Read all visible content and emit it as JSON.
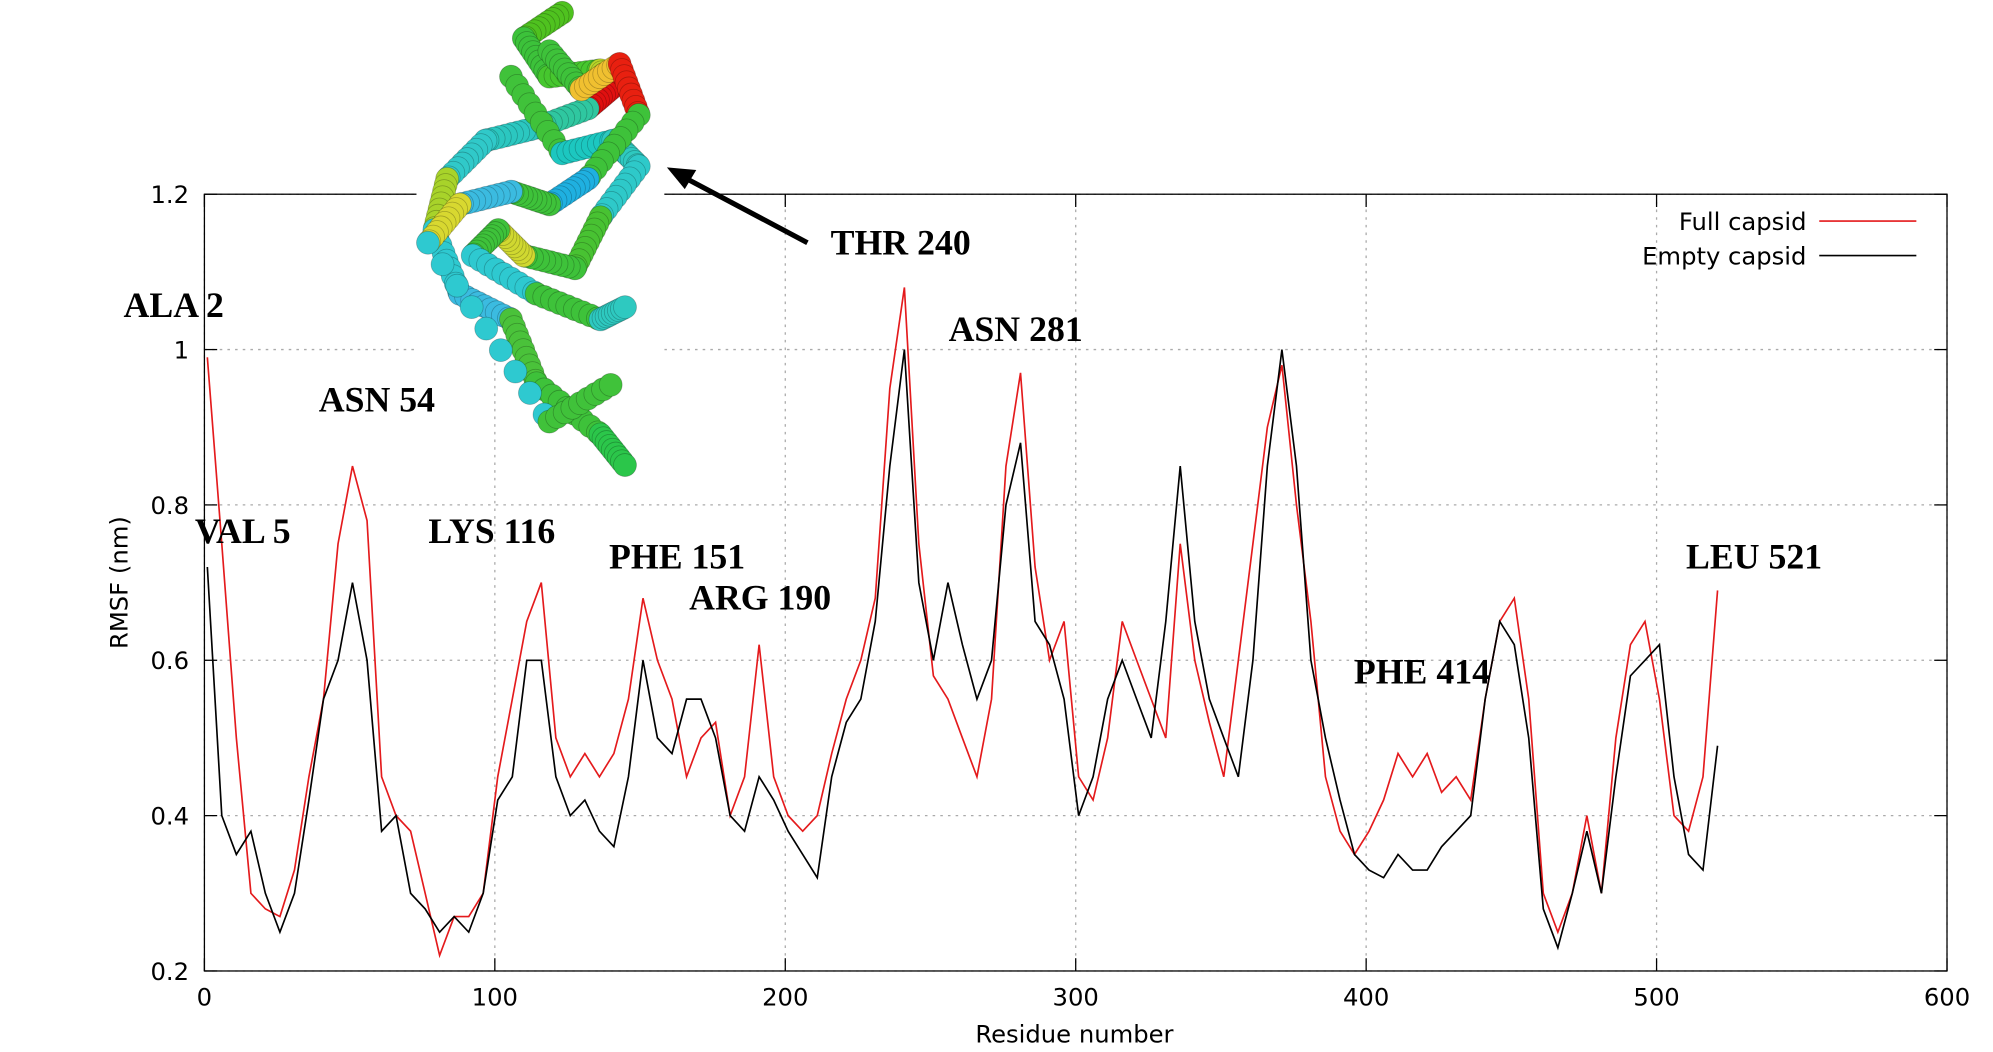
{
  "chart_data": {
    "type": "line",
    "xlabel": "Residue number",
    "ylabel": "RMSF (nm)",
    "x": [
      1,
      6,
      11,
      16,
      21,
      26,
      31,
      36,
      41,
      46,
      51,
      56,
      61,
      66,
      71,
      76,
      81,
      86,
      91,
      96,
      101,
      106,
      111,
      116,
      121,
      126,
      131,
      136,
      141,
      146,
      151,
      156,
      161,
      166,
      171,
      176,
      181,
      186,
      191,
      196,
      201,
      206,
      211,
      216,
      221,
      226,
      231,
      236,
      241,
      246,
      251,
      256,
      261,
      266,
      271,
      276,
      281,
      286,
      291,
      296,
      301,
      306,
      311,
      316,
      321,
      326,
      331,
      336,
      341,
      346,
      351,
      356,
      361,
      366,
      371,
      376,
      381,
      386,
      391,
      396,
      401,
      406,
      411,
      416,
      421,
      426,
      431,
      436,
      441,
      446,
      451,
      456,
      461,
      466,
      471,
      476,
      481,
      486,
      491,
      496,
      501,
      506,
      511,
      516,
      521
    ],
    "series": [
      {
        "name": "Full capsid",
        "color": "#e41a1c",
        "values": [
          0.99,
          0.75,
          0.5,
          0.3,
          0.28,
          0.27,
          0.33,
          0.45,
          0.55,
          0.75,
          0.85,
          0.78,
          0.45,
          0.4,
          0.38,
          0.3,
          0.22,
          0.27,
          0.27,
          0.3,
          0.45,
          0.55,
          0.65,
          0.7,
          0.5,
          0.45,
          0.48,
          0.45,
          0.48,
          0.55,
          0.68,
          0.6,
          0.55,
          0.45,
          0.5,
          0.52,
          0.4,
          0.45,
          0.62,
          0.45,
          0.4,
          0.38,
          0.4,
          0.48,
          0.55,
          0.6,
          0.68,
          0.95,
          1.08,
          0.75,
          0.58,
          0.55,
          0.5,
          0.45,
          0.55,
          0.85,
          0.97,
          0.72,
          0.6,
          0.65,
          0.45,
          0.42,
          0.5,
          0.65,
          0.6,
          0.55,
          0.5,
          0.75,
          0.6,
          0.52,
          0.45,
          0.6,
          0.75,
          0.9,
          0.98,
          0.8,
          0.65,
          0.45,
          0.38,
          0.35,
          0.38,
          0.42,
          0.48,
          0.45,
          0.48,
          0.43,
          0.45,
          0.42,
          0.55,
          0.65,
          0.68,
          0.55,
          0.3,
          0.25,
          0.3,
          0.4,
          0.3,
          0.5,
          0.62,
          0.65,
          0.55,
          0.4,
          0.38,
          0.45,
          0.69
        ]
      },
      {
        "name": "Empty capsid",
        "color": "#000000",
        "values": [
          0.72,
          0.4,
          0.35,
          0.38,
          0.3,
          0.25,
          0.3,
          0.42,
          0.55,
          0.6,
          0.7,
          0.6,
          0.38,
          0.4,
          0.3,
          0.28,
          0.25,
          0.27,
          0.25,
          0.3,
          0.42,
          0.45,
          0.6,
          0.6,
          0.45,
          0.4,
          0.42,
          0.38,
          0.36,
          0.45,
          0.6,
          0.5,
          0.48,
          0.55,
          0.55,
          0.5,
          0.4,
          0.38,
          0.45,
          0.42,
          0.38,
          0.35,
          0.32,
          0.45,
          0.52,
          0.55,
          0.65,
          0.85,
          1.0,
          0.7,
          0.6,
          0.7,
          0.62,
          0.55,
          0.6,
          0.8,
          0.88,
          0.65,
          0.62,
          0.55,
          0.4,
          0.45,
          0.55,
          0.6,
          0.55,
          0.5,
          0.65,
          0.85,
          0.65,
          0.55,
          0.5,
          0.45,
          0.6,
          0.85,
          1.0,
          0.85,
          0.6,
          0.5,
          0.42,
          0.35,
          0.33,
          0.32,
          0.35,
          0.33,
          0.33,
          0.36,
          0.38,
          0.4,
          0.55,
          0.65,
          0.62,
          0.5,
          0.28,
          0.23,
          0.3,
          0.38,
          0.3,
          0.45,
          0.58,
          0.6,
          0.62,
          0.45,
          0.35,
          0.33,
          0.49
        ]
      }
    ],
    "xlim": [
      0,
      600
    ],
    "xticks": [
      0,
      100,
      200,
      300,
      400,
      500,
      600
    ],
    "ylim": [
      0.2,
      1.2
    ],
    "yticks": [
      0.2,
      0.4,
      0.6,
      0.8,
      1,
      1.2
    ],
    "grid": true,
    "legend": "upper right",
    "annotations": [
      "ALA 2",
      "VAL 5",
      "ASN 54",
      "LYS 116",
      "PHE 151",
      "ARG 190",
      "THR 240",
      "ASN 281",
      "PHE 414",
      "LEU 521"
    ]
  }
}
